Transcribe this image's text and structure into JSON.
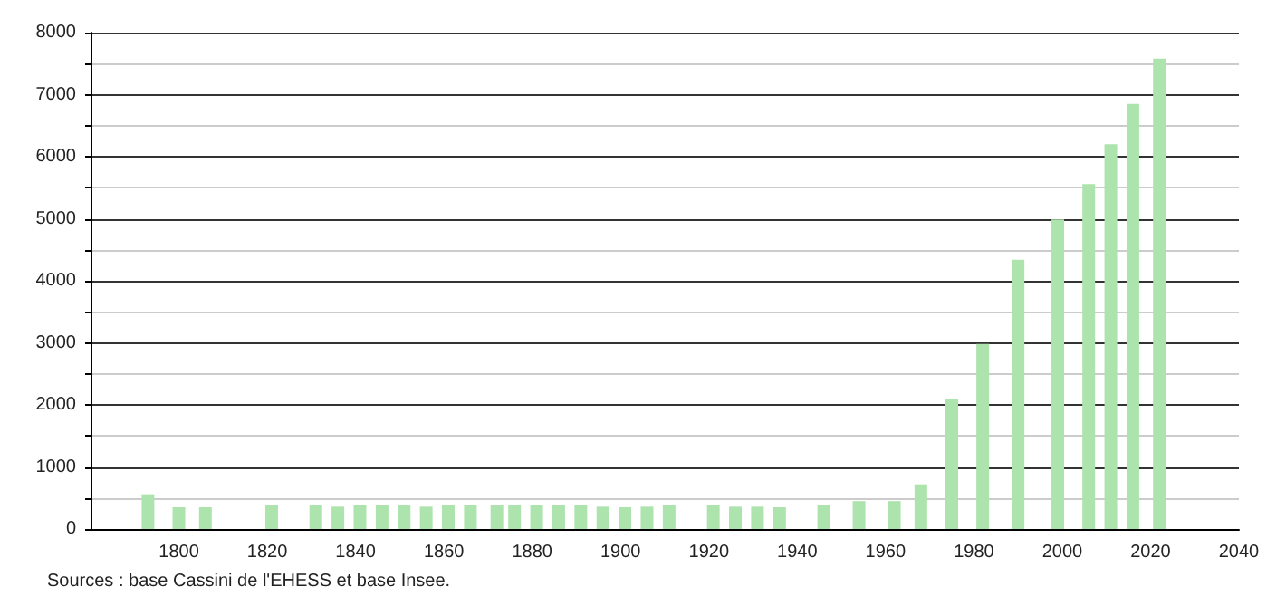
{
  "chart_data": {
    "type": "bar",
    "color": "#ade3ad",
    "x": [
      1793,
      1800,
      1806,
      1821,
      1831,
      1836,
      1841,
      1846,
      1851,
      1856,
      1861,
      1866,
      1872,
      1876,
      1881,
      1886,
      1891,
      1896,
      1901,
      1906,
      1911,
      1921,
      1926,
      1931,
      1936,
      1946,
      1954,
      1962,
      1968,
      1975,
      1982,
      1990,
      1999,
      2006,
      2011,
      2016,
      2022
    ],
    "values": [
      560,
      350,
      350,
      380,
      390,
      360,
      390,
      390,
      390,
      360,
      390,
      390,
      390,
      390,
      390,
      390,
      390,
      360,
      350,
      360,
      380,
      390,
      360,
      360,
      350,
      380,
      450,
      450,
      720,
      2100,
      2980,
      4340,
      4990,
      5560,
      6200,
      6850,
      7580
    ],
    "xlim": [
      1780,
      2040
    ],
    "xticks": [
      1800,
      1820,
      1840,
      1860,
      1880,
      1900,
      1920,
      1940,
      1960,
      1980,
      2000,
      2020,
      2040
    ],
    "ylim": [
      0,
      8000
    ],
    "yticks": [
      0,
      {
        "value": 500,
        "label": null
      },
      1000,
      {
        "value": 1500,
        "label": null
      },
      2000,
      {
        "value": 2500,
        "label": null
      },
      3000,
      {
        "value": 3500,
        "label": null
      },
      4000,
      {
        "value": 4500,
        "label": null
      },
      5000,
      {
        "value": 5500,
        "label": null
      },
      6000,
      {
        "value": 6500,
        "label": null
      },
      7000,
      {
        "value": 7500,
        "label": null
      },
      8000
    ],
    "grid": "y",
    "annotations": [
      "Sources : base Cassini de l'EHESS et base Insee."
    ]
  }
}
